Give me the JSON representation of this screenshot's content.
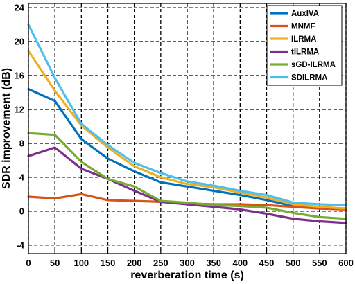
{
  "chart_data": {
    "type": "line",
    "xlabel": "reverberation time (s)",
    "ylabel": "SDR improvement (dB)",
    "xlim": [
      0,
      600
    ],
    "ylim": [
      -5,
      24.5
    ],
    "xticks": [
      0,
      50,
      100,
      150,
      200,
      250,
      300,
      350,
      400,
      450,
      500,
      550,
      600
    ],
    "yticks": [
      -4,
      0,
      4,
      8,
      12,
      16,
      20,
      24
    ],
    "grid": true,
    "legend_position": "top-right",
    "x": [
      0,
      50,
      100,
      150,
      200,
      250,
      300,
      350,
      400,
      450,
      500,
      550,
      600
    ],
    "series": [
      {
        "name": "AuxIVA",
        "color": "#0072BD",
        "values": [
          14.4,
          13.0,
          8.5,
          6.2,
          4.7,
          3.4,
          2.9,
          2.4,
          1.9,
          1.3,
          0.6,
          0.4,
          0.3
        ]
      },
      {
        "name": "MNMF",
        "color": "#D95319",
        "values": [
          1.7,
          1.5,
          2.0,
          1.3,
          1.2,
          1.1,
          0.9,
          0.8,
          0.8,
          0.7,
          0.5,
          0.3,
          0.2
        ]
      },
      {
        "name": "ILRMA",
        "color": "#EDB120",
        "values": [
          18.9,
          14.2,
          10.1,
          7.5,
          5.3,
          4.0,
          3.2,
          2.8,
          2.2,
          1.6,
          0.8,
          0.5,
          0.3
        ]
      },
      {
        "name": "tILRMA",
        "color": "#7E2F8E",
        "values": [
          6.5,
          7.5,
          5.0,
          3.8,
          2.4,
          1.1,
          0.8,
          0.5,
          0.2,
          -0.3,
          -0.9,
          -1.2,
          -1.4
        ]
      },
      {
        "name": "sGD-ILRMA",
        "color": "#77AC30",
        "values": [
          9.2,
          9.0,
          5.8,
          3.8,
          2.9,
          1.2,
          1.0,
          0.7,
          0.6,
          0.4,
          -0.2,
          -0.7,
          -0.9
        ]
      },
      {
        "name": "SDILRMA",
        "color": "#4DBEEE",
        "values": [
          22.0,
          15.7,
          10.3,
          7.8,
          5.7,
          4.5,
          3.5,
          3.0,
          2.4,
          1.9,
          1.0,
          0.8,
          0.7
        ]
      }
    ]
  }
}
